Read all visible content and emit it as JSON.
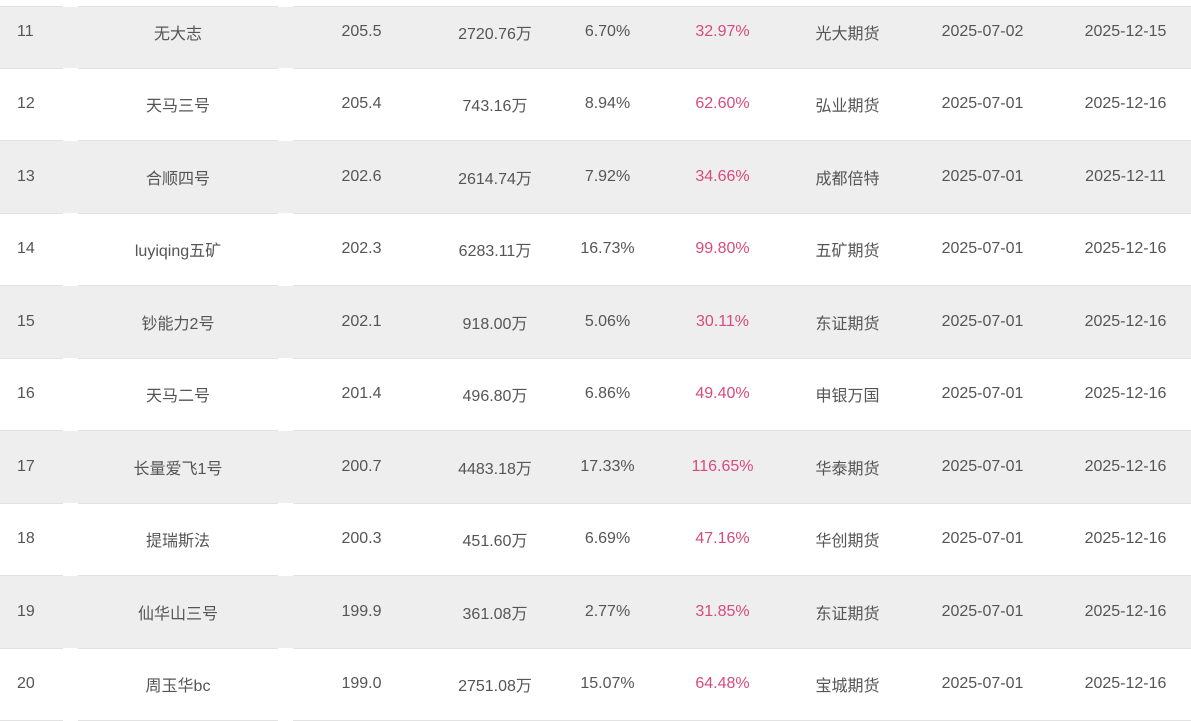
{
  "colors": {
    "row_alt_bg": "#eeeeee",
    "row_bg": "#ffffff",
    "text": "#555555",
    "highlight_pink": "#d84a7d",
    "border": "#e2e2e2"
  },
  "table": {
    "rows": [
      {
        "rank": "11",
        "name": "无大志",
        "value": "205.5",
        "amount": "2720.76万",
        "percent": "6.70%",
        "highlight_percent": "32.97%",
        "broker": "光大期货",
        "date1": "2025-07-02",
        "date2": "2025-12-15"
      },
      {
        "rank": "12",
        "name": "天马三号",
        "value": "205.4",
        "amount": "743.16万",
        "percent": "8.94%",
        "highlight_percent": "62.60%",
        "broker": "弘业期货",
        "date1": "2025-07-01",
        "date2": "2025-12-16"
      },
      {
        "rank": "13",
        "name": "合顺四号",
        "value": "202.6",
        "amount": "2614.74万",
        "percent": "7.92%",
        "highlight_percent": "34.66%",
        "broker": "成都倍特",
        "date1": "2025-07-01",
        "date2": "2025-12-11"
      },
      {
        "rank": "14",
        "name": "luyiqing五矿",
        "value": "202.3",
        "amount": "6283.11万",
        "percent": "16.73%",
        "highlight_percent": "99.80%",
        "broker": "五矿期货",
        "date1": "2025-07-01",
        "date2": "2025-12-16"
      },
      {
        "rank": "15",
        "name": "钞能力2号",
        "value": "202.1",
        "amount": "918.00万",
        "percent": "5.06%",
        "highlight_percent": "30.11%",
        "broker": "东证期货",
        "date1": "2025-07-01",
        "date2": "2025-12-16"
      },
      {
        "rank": "16",
        "name": "天马二号",
        "value": "201.4",
        "amount": "496.80万",
        "percent": "6.86%",
        "highlight_percent": "49.40%",
        "broker": "申银万国",
        "date1": "2025-07-01",
        "date2": "2025-12-16"
      },
      {
        "rank": "17",
        "name": "长量爱飞1号",
        "value": "200.7",
        "amount": "4483.18万",
        "percent": "17.33%",
        "highlight_percent": "116.65%",
        "broker": "华泰期货",
        "date1": "2025-07-01",
        "date2": "2025-12-16"
      },
      {
        "rank": "18",
        "name": "提瑞斯法",
        "value": "200.3",
        "amount": "451.60万",
        "percent": "6.69%",
        "highlight_percent": "47.16%",
        "broker": "华创期货",
        "date1": "2025-07-01",
        "date2": "2025-12-16"
      },
      {
        "rank": "19",
        "name": "仙华山三号",
        "value": "199.9",
        "amount": "361.08万",
        "percent": "2.77%",
        "highlight_percent": "31.85%",
        "broker": "东证期货",
        "date1": "2025-07-01",
        "date2": "2025-12-16"
      },
      {
        "rank": "20",
        "name": "周玉华bc",
        "value": "199.0",
        "amount": "2751.08万",
        "percent": "15.07%",
        "highlight_percent": "64.48%",
        "broker": "宝城期货",
        "date1": "2025-07-01",
        "date2": "2025-12-16"
      }
    ]
  }
}
